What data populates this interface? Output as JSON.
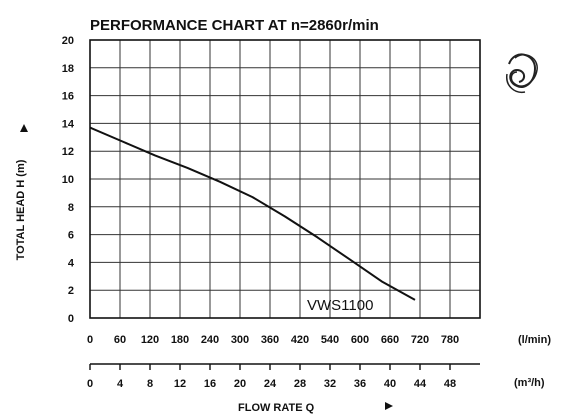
{
  "chart_data": {
    "type": "line",
    "title": "PERFORMANCE CHART AT n=2860r/min",
    "ylabel": "TOTAL HEAD H (m)",
    "ylim": [
      0,
      20
    ],
    "y_ticks": [
      "0",
      "2",
      "4",
      "6",
      "8",
      "10",
      "12",
      "14",
      "16",
      "18",
      "20"
    ],
    "xlabel": "FLOW RATE Q",
    "x_ticks_lmin": [
      "0",
      "60",
      "120",
      "180",
      "240",
      "300",
      "360",
      "420",
      "540",
      "600",
      "660",
      "720",
      "780"
    ],
    "x_unit_lmin": "(l/min)",
    "x_ticks_m3h": [
      "0",
      "4",
      "8",
      "12",
      "16",
      "20",
      "24",
      "28",
      "32",
      "36",
      "40",
      "44",
      "48"
    ],
    "x_unit_m3h": "(m³/h)",
    "xlim_m3h": [
      0,
      48
    ],
    "grid": true,
    "series": [
      {
        "name": "VWS1100",
        "x": [
          0,
          4,
          8,
          12,
          16,
          20,
          24,
          28,
          32,
          36,
          40
        ],
        "y": [
          13.7,
          12.7,
          11.7,
          10.8,
          9.8,
          8.7,
          7.3,
          5.8,
          4.2,
          2.6,
          1.3
        ]
      }
    ]
  },
  "icons": {
    "logo": "swirl-logo-icon"
  }
}
